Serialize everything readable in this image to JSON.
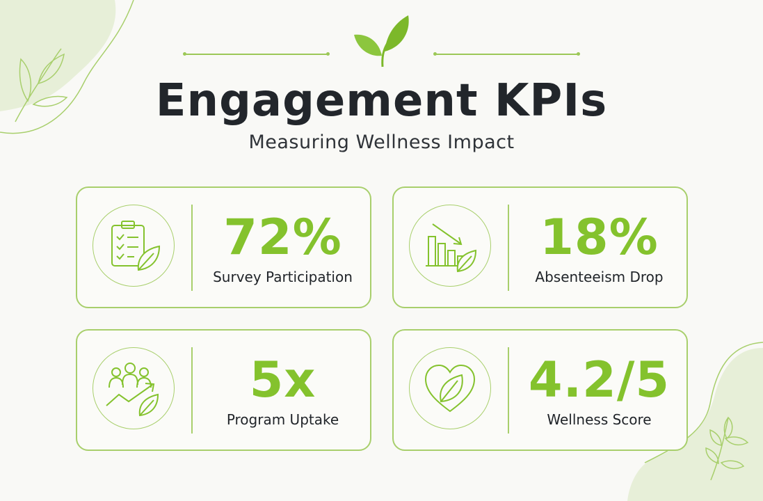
{
  "header": {
    "title": "Engagement KPIs",
    "subtitle": "Measuring Wellness Impact",
    "decoration_icon": "leaf-sprout-icon"
  },
  "colors": {
    "accent": "#84c22d",
    "accent_light": "#a8cf6c",
    "background": "#f9f9f6",
    "text": "#1f2328"
  },
  "kpis": [
    {
      "value": "72%",
      "label": "Survey Participation",
      "icon": "clipboard-checklist-leaf-icon"
    },
    {
      "value": "18%",
      "label": "Absenteeism Drop",
      "icon": "declining-bar-chart-leaf-icon"
    },
    {
      "value": "5x",
      "label": "Program Uptake",
      "icon": "people-growth-arrow-leaf-icon"
    },
    {
      "value": "4.2/5",
      "label": "Wellness Score",
      "icon": "heart-leaf-icon"
    }
  ]
}
